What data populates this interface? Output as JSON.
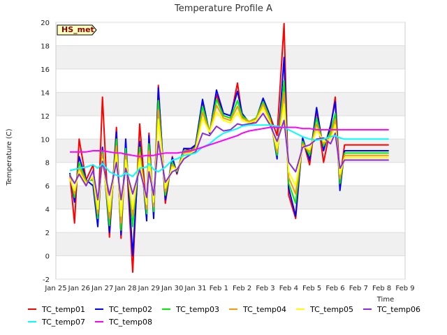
{
  "chart_data": {
    "type": "line",
    "title": "Temperature Profile A",
    "xlabel": "Time",
    "ylabel": "Temperature (C)",
    "station_badge": "HS_met",
    "ylim": [
      -2,
      20
    ],
    "yticks": [
      -2,
      0,
      2,
      4,
      6,
      8,
      10,
      12,
      14,
      16,
      18,
      20
    ],
    "xlim": [
      0,
      15
    ],
    "xtick_labels": [
      "Jan 25",
      "Jan 26",
      "Jan 27",
      "Jan 28",
      "Jan 29",
      "Jan 30",
      "Jan 31",
      "Feb 1",
      "Feb 2",
      "Feb 3",
      "Feb 4",
      "Feb 5",
      "Feb 6",
      "Feb 7",
      "Feb 8",
      "Feb 9"
    ],
    "x": [
      0.6,
      0.8,
      1.0,
      1.3,
      1.6,
      1.8,
      2.0,
      2.3,
      2.6,
      2.8,
      3.0,
      3.3,
      3.6,
      3.9,
      4.0,
      4.2,
      4.4,
      4.7,
      5.0,
      5.2,
      5.5,
      5.8,
      6.0,
      6.3,
      6.6,
      6.9,
      7.2,
      7.5,
      7.8,
      8.0,
      8.3,
      8.6,
      8.9,
      9.2,
      9.5,
      9.8,
      10.0,
      10.3,
      10.6,
      10.9,
      11.2,
      11.5,
      11.8,
      12.0,
      12.2,
      12.4,
      12.6,
      12.8,
      13.0,
      13.3,
      13.6,
      13.9,
      14.1,
      14.3
    ],
    "series": [
      {
        "name": "TC_temp01",
        "color": "#ff0000",
        "values": [
          7.0,
          2.8,
          10.0,
          6.5,
          7.8,
          2.8,
          13.6,
          1.6,
          11.0,
          1.5,
          9.5,
          -1.4,
          11.3,
          3.8,
          10.5,
          3.5,
          14.6,
          4.5,
          8.5,
          7.0,
          9.2,
          9.0,
          9.5,
          13.2,
          10.5,
          13.8,
          12.0,
          11.8,
          14.8,
          12.0,
          11.3,
          11.6,
          13.4,
          12.0,
          10.3,
          19.9,
          5.2,
          3.2,
          10.0,
          7.8,
          12.5,
          8.0,
          11.0,
          13.6,
          6.5,
          9.5,
          9.5,
          9.5,
          9.5,
          9.5,
          9.5,
          9.5,
          9.5,
          9.5
        ]
      },
      {
        "name": "TC_temp02",
        "color": "#0000ff",
        "values": [
          7.1,
          4.6,
          8.5,
          6.5,
          6.0,
          2.5,
          9.3,
          2.0,
          10.6,
          1.8,
          10.0,
          0.0,
          9.8,
          3.0,
          10.3,
          3.2,
          14.4,
          4.8,
          8.4,
          7.1,
          9.2,
          9.2,
          9.5,
          13.4,
          10.5,
          14.2,
          12.2,
          12.0,
          14.1,
          12.2,
          11.4,
          11.7,
          13.5,
          12.0,
          8.3,
          17.0,
          5.8,
          3.4,
          10.1,
          8.2,
          12.7,
          9.0,
          11.2,
          13.2,
          5.6,
          9.0,
          9.0,
          9.0,
          9.0,
          9.0,
          9.0,
          9.0,
          9.0,
          9.0
        ]
      },
      {
        "name": "TC_temp03",
        "color": "#00ee00",
        "values": [
          7.0,
          5.0,
          8.0,
          6.4,
          6.5,
          3.2,
          9.0,
          2.6,
          10.0,
          2.2,
          9.2,
          2.5,
          9.3,
          3.6,
          9.6,
          3.8,
          13.3,
          5.2,
          8.0,
          7.2,
          9.0,
          9.0,
          9.3,
          12.8,
          10.6,
          13.4,
          12.0,
          11.8,
          13.3,
          12.0,
          11.5,
          11.8,
          13.2,
          11.8,
          8.6,
          15.0,
          6.2,
          4.5,
          9.8,
          8.6,
          11.8,
          9.4,
          10.6,
          12.2,
          6.2,
          8.8,
          8.8,
          8.8,
          8.8,
          8.8,
          8.8,
          8.8,
          8.8,
          8.8
        ]
      },
      {
        "name": "TC_temp04",
        "color": "#ff9900",
        "values": [
          6.8,
          5.3,
          7.6,
          6.3,
          6.7,
          3.6,
          8.7,
          3.2,
          9.4,
          2.8,
          8.7,
          3.4,
          8.8,
          4.0,
          9.0,
          4.2,
          12.5,
          5.5,
          7.8,
          7.3,
          8.8,
          8.9,
          9.2,
          12.3,
          10.6,
          12.9,
          11.8,
          11.6,
          12.8,
          11.8,
          11.5,
          11.7,
          13.0,
          11.6,
          8.9,
          14.0,
          6.7,
          5.3,
          9.6,
          8.9,
          11.3,
          9.6,
          10.3,
          11.7,
          6.6,
          8.6,
          8.6,
          8.6,
          8.6,
          8.6,
          8.6,
          8.6,
          8.6,
          8.6
        ]
      },
      {
        "name": "TC_temp05",
        "color": "#ffff00",
        "values": [
          6.6,
          5.6,
          7.2,
          6.2,
          6.8,
          4.0,
          8.3,
          3.8,
          8.8,
          3.4,
          8.2,
          4.0,
          8.3,
          4.4,
          8.4,
          4.6,
          11.7,
          5.8,
          7.6,
          7.4,
          8.6,
          8.8,
          9.1,
          11.8,
          10.6,
          12.3,
          11.6,
          11.4,
          12.3,
          11.6,
          11.4,
          11.6,
          12.7,
          11.4,
          9.2,
          13.0,
          7.2,
          6.0,
          9.4,
          9.1,
          10.8,
          9.8,
          10.0,
          11.2,
          7.0,
          8.4,
          8.4,
          8.4,
          8.4,
          8.4,
          8.4,
          8.4,
          8.4,
          8.4
        ]
      },
      {
        "name": "TC_temp06",
        "color": "#8a2be2",
        "values": [
          6.9,
          6.2,
          7.0,
          6.0,
          7.3,
          4.8,
          8.1,
          5.2,
          8.0,
          4.8,
          7.5,
          5.3,
          7.4,
          5.0,
          7.2,
          5.2,
          9.8,
          6.3,
          7.2,
          7.4,
          8.3,
          8.7,
          8.9,
          10.5,
          10.3,
          11.1,
          10.7,
          10.8,
          11.3,
          11.2,
          11.3,
          11.4,
          12.2,
          11.2,
          9.8,
          11.6,
          8.0,
          7.2,
          9.3,
          9.5,
          10.0,
          10.1,
          9.6,
          10.5,
          7.5,
          8.2,
          8.2,
          8.2,
          8.2,
          8.2,
          8.2,
          8.2,
          8.2,
          8.2
        ]
      },
      {
        "name": "TC_temp07",
        "color": "#00ffff",
        "values": [
          7.3,
          7.4,
          7.5,
          7.6,
          7.8,
          7.5,
          7.9,
          7.2,
          6.9,
          6.8,
          7.1,
          6.8,
          7.5,
          7.6,
          7.9,
          7.4,
          7.2,
          7.6,
          8.2,
          8.3,
          8.6,
          8.7,
          8.8,
          9.3,
          9.6,
          10.1,
          10.5,
          10.7,
          10.9,
          11.1,
          11.2,
          11.2,
          11.2,
          11.2,
          11.1,
          11.0,
          10.8,
          10.5,
          10.2,
          10.0,
          9.9,
          10.0,
          10.2,
          10.3,
          10.1,
          10.0,
          10.0,
          10.0,
          10.0,
          10.0,
          10.0,
          10.0,
          10.0,
          10.0
        ]
      },
      {
        "name": "TC_temp08",
        "color": "#ff00ff",
        "values": [
          8.9,
          8.9,
          8.9,
          8.9,
          9.0,
          9.0,
          9.0,
          8.9,
          8.8,
          8.8,
          8.7,
          8.6,
          8.5,
          8.6,
          8.6,
          8.6,
          8.7,
          8.8,
          8.8,
          8.8,
          8.9,
          9.0,
          9.1,
          9.3,
          9.5,
          9.7,
          9.9,
          10.1,
          10.3,
          10.5,
          10.7,
          10.8,
          10.9,
          11.0,
          11.0,
          11.0,
          11.0,
          11.0,
          10.9,
          10.9,
          10.8,
          10.8,
          10.8,
          10.8,
          10.8,
          10.8,
          10.8,
          10.8,
          10.8,
          10.8,
          10.8,
          10.8,
          10.8,
          10.8
        ]
      }
    ],
    "legend_position": "bottom"
  }
}
